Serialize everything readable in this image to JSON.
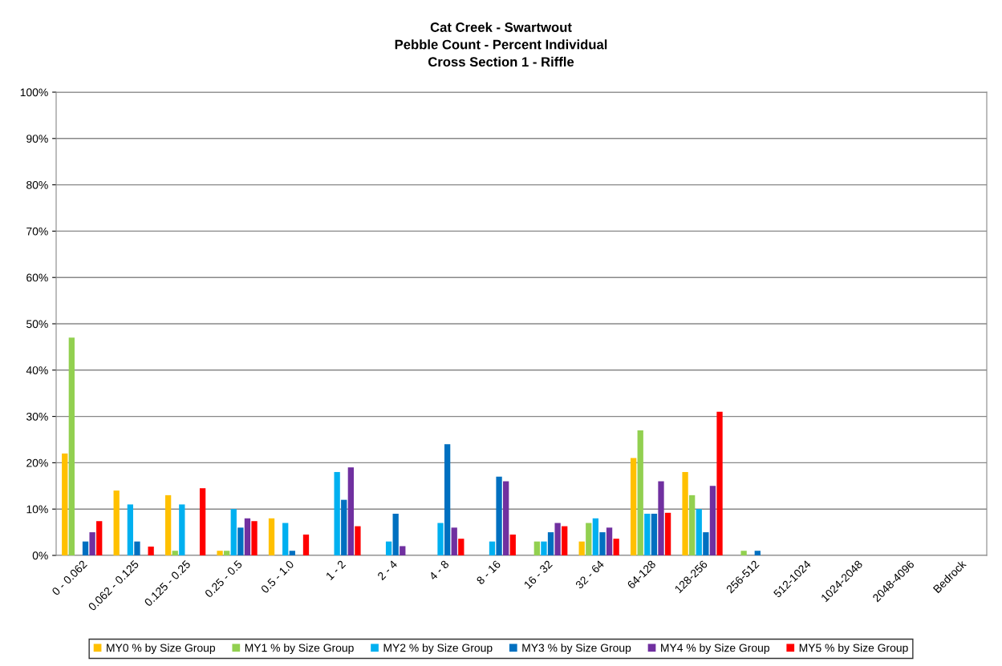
{
  "chart_data": {
    "type": "bar",
    "title": "Cat Creek - Swartwout\nPebble Count - Percent Individual\nCross Section 1 - Riffle",
    "categories": [
      "0 - 0.062",
      "0.062 - 0.125",
      "0.125 - 0.25",
      "0.25 - 0.5",
      "0.5 - 1.0",
      "1 - 2",
      "2 - 4",
      "4 - 8",
      "8 - 16",
      "16 - 32",
      "32 - 64",
      "64-128",
      "128-256",
      "256-512",
      "512-1024",
      "1024-2048",
      "2048-4096",
      "Bedrock"
    ],
    "series": [
      {
        "name": "MY0 % by Size Group",
        "color": "#ffc000",
        "values": [
          22,
          14,
          13,
          1,
          8,
          0,
          0,
          0,
          0,
          0,
          3,
          21,
          18,
          0,
          0,
          0,
          0,
          0
        ]
      },
      {
        "name": "MY1 % by Size Group",
        "color": "#92d050",
        "values": [
          47,
          0,
          1,
          1,
          0,
          0,
          0,
          0,
          0,
          3,
          7,
          27,
          13,
          1,
          0,
          0,
          0,
          0
        ]
      },
      {
        "name": "MY2 % by Size Group",
        "color": "#00b0f0",
        "values": [
          0,
          11,
          11,
          10,
          7,
          18,
          3,
          7,
          3,
          3,
          8,
          9,
          10,
          0,
          0,
          0,
          0,
          0
        ]
      },
      {
        "name": "MY3 % by Size Group",
        "color": "#0070c0",
        "values": [
          3,
          3,
          0,
          6,
          1,
          12,
          9,
          24,
          17,
          5,
          5,
          9,
          5,
          1,
          0,
          0,
          0,
          0
        ]
      },
      {
        "name": "MY4 % by Size Group",
        "color": "#7030a0",
        "values": [
          5,
          0,
          0,
          8,
          0,
          19,
          2,
          6,
          16,
          7,
          6,
          16,
          15,
          0,
          0,
          0,
          0,
          0
        ]
      },
      {
        "name": "MY5 % by Size Group",
        "color": "#ff0000",
        "values": [
          7.4,
          1.9,
          14.5,
          7.4,
          4.5,
          6.3,
          0,
          3.6,
          4.5,
          6.3,
          3.6,
          9.2,
          31,
          0,
          0,
          0,
          0,
          0
        ]
      }
    ],
    "ylim": [
      0,
      100
    ],
    "yticks": [
      {
        "value": 0,
        "label": "0%"
      },
      {
        "value": 10,
        "label": "10%"
      },
      {
        "value": 20,
        "label": "20%"
      },
      {
        "value": 30,
        "label": "30%"
      },
      {
        "value": 40,
        "label": "40%"
      },
      {
        "value": 50,
        "label": "50%"
      },
      {
        "value": 60,
        "label": "60%"
      },
      {
        "value": 70,
        "label": "70%"
      },
      {
        "value": 80,
        "label": "80%"
      },
      {
        "value": 90,
        "label": "90%"
      },
      {
        "value": 100,
        "label": "100%"
      }
    ],
    "grid": "y",
    "legend": "bottom"
  }
}
